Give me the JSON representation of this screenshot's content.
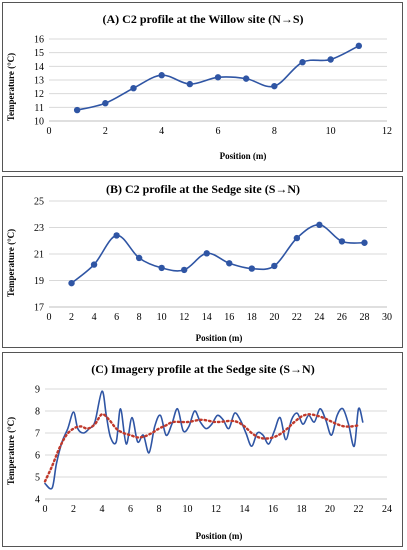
{
  "chart_data": [
    {
      "id": "A",
      "type": "line",
      "title": "(A) C2 profile at the Willow site (N→S)",
      "xlabel": "Position (m)",
      "ylabel": "Temperature (°C)",
      "xlim": [
        0,
        12
      ],
      "ylim": [
        10,
        16
      ],
      "xticks": [
        0,
        2,
        4,
        6,
        8,
        10,
        12
      ],
      "yticks": [
        10,
        11,
        12,
        13,
        14,
        15,
        16
      ],
      "grid": "horizontal",
      "color": "#2f55a4",
      "series": [
        {
          "x": [
            1,
            2,
            3,
            4,
            5,
            6,
            7,
            8,
            9,
            10,
            11
          ],
          "y": [
            10.8,
            11.3,
            12.4,
            13.35,
            12.7,
            13.2,
            13.1,
            12.55,
            14.3,
            14.5,
            15.5
          ],
          "markers": true
        }
      ]
    },
    {
      "id": "B",
      "type": "line",
      "title": "(B) C2 profile at the Sedge site (S→N)",
      "xlabel": "Position (m)",
      "ylabel": "Temperature (°C)",
      "xlim": [
        0,
        30
      ],
      "ylim": [
        17,
        25
      ],
      "xticks": [
        0,
        2,
        4,
        6,
        8,
        10,
        12,
        14,
        16,
        18,
        20,
        22,
        24,
        26,
        28,
        30
      ],
      "yticks": [
        17,
        19,
        21,
        23,
        25
      ],
      "grid": "horizontal",
      "color": "#2f55a4",
      "series": [
        {
          "x": [
            2,
            4,
            6,
            8,
            10,
            12,
            14,
            16,
            18,
            20,
            22,
            24,
            26,
            28
          ],
          "y": [
            18.8,
            20.2,
            22.4,
            20.7,
            19.95,
            19.8,
            21.05,
            20.3,
            19.9,
            20.1,
            22.2,
            23.2,
            21.95,
            21.85
          ],
          "markers": true
        }
      ]
    },
    {
      "id": "C",
      "type": "line",
      "title": "(C) Imagery profile at the Sedge site (S→N)",
      "xlabel": "Position (m)",
      "ylabel": "Temperature (°C)",
      "xlim": [
        0,
        24
      ],
      "ylim": [
        4,
        9
      ],
      "xticks": [
        0,
        2,
        4,
        6,
        8,
        10,
        12,
        14,
        16,
        18,
        20,
        22,
        24
      ],
      "yticks": [
        4,
        5,
        6,
        7,
        8,
        9
      ],
      "grid": "horizontal",
      "series": [
        {
          "style": "solid",
          "color": "#2f55a4",
          "x": [
            0,
            0.5,
            0.8,
            1.2,
            1.6,
            2.0,
            2.3,
            2.7,
            3.1,
            3.5,
            4.0,
            4.3,
            4.6,
            5.0,
            5.3,
            5.7,
            6.1,
            6.5,
            6.9,
            7.3,
            7.7,
            8.1,
            8.5,
            8.9,
            9.3,
            9.7,
            10.1,
            10.5,
            10.9,
            11.3,
            11.7,
            12.1,
            12.5,
            12.9,
            13.3,
            13.7,
            14.1,
            14.5,
            14.9,
            15.3,
            15.7,
            16.1,
            16.5,
            16.9,
            17.3,
            17.7,
            18.1,
            18.5,
            18.9,
            19.3,
            19.7,
            20.1,
            20.5,
            20.9,
            21.3,
            21.7,
            22.0,
            22.3
          ],
          "y": [
            4.7,
            4.5,
            5.6,
            6.6,
            7.2,
            7.95,
            7.2,
            7.0,
            7.2,
            7.5,
            8.9,
            7.8,
            6.8,
            6.6,
            8.1,
            6.5,
            7.7,
            6.6,
            6.9,
            6.1,
            7.3,
            7.8,
            6.9,
            7.4,
            8.1,
            7.1,
            7.3,
            8.0,
            7.5,
            7.2,
            7.4,
            7.8,
            7.6,
            7.2,
            7.9,
            7.6,
            7.0,
            6.4,
            7.0,
            6.9,
            6.5,
            7.1,
            7.7,
            6.7,
            7.6,
            7.9,
            7.4,
            7.8,
            7.5,
            8.1,
            7.6,
            6.9,
            7.8,
            8.1,
            7.4,
            6.4,
            8.1,
            7.5
          ],
          "markers": false
        },
        {
          "style": "dotted",
          "color": "#c0392b",
          "x": [
            0,
            0.5,
            1.0,
            1.5,
            2.0,
            2.5,
            3.0,
            3.5,
            4.0,
            4.5,
            5.0,
            5.5,
            6.0,
            6.5,
            7.0,
            7.5,
            8.0,
            8.5,
            9.0,
            10.0,
            11.0,
            12.0,
            13.0,
            13.5,
            14.0,
            14.5,
            15.0,
            15.5,
            16.0,
            16.5,
            17.0,
            17.5,
            18.0,
            18.5,
            19.0,
            19.5,
            20.0,
            20.5,
            21.0,
            21.5,
            22.0
          ],
          "y": [
            4.8,
            5.5,
            6.3,
            6.9,
            7.2,
            7.3,
            7.2,
            7.4,
            7.85,
            7.6,
            7.2,
            7.0,
            6.9,
            6.8,
            6.85,
            7.0,
            7.2,
            7.35,
            7.5,
            7.5,
            7.6,
            7.5,
            7.55,
            7.5,
            7.3,
            7.0,
            6.8,
            6.75,
            6.8,
            6.95,
            7.2,
            7.5,
            7.75,
            7.85,
            7.8,
            7.7,
            7.55,
            7.4,
            7.3,
            7.3,
            7.35
          ],
          "markers": false
        }
      ]
    }
  ]
}
